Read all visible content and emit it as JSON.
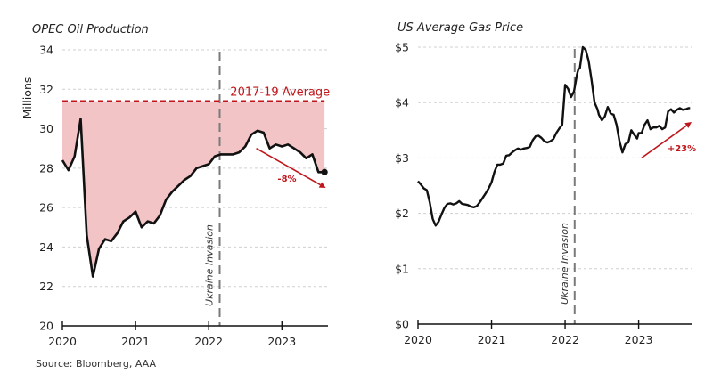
{
  "source": "Source: Bloomberg, AAA",
  "colors": {
    "line": "#111111",
    "accent_red": "#c0151b",
    "fill_pink": "#f2c4c6",
    "grid": "#cfcfcf",
    "event_line": "#7a7a7a"
  },
  "chart_data": [
    {
      "type": "area",
      "title": "OPEC Oil Production",
      "xlabel": "",
      "ylabel": "Millions",
      "xlim": [
        2020.0,
        2023.63
      ],
      "ylim": [
        20,
        34
      ],
      "x_ticks": [
        2020,
        2021,
        2022,
        2023
      ],
      "x_tick_labels": [
        "2020",
        "2021",
        "2022",
        "2023"
      ],
      "y_ticks": [
        20,
        22,
        24,
        26,
        28,
        30,
        32,
        34
      ],
      "y_tick_labels": [
        "20",
        "22",
        "24",
        "26",
        "28",
        "30",
        "32",
        "34"
      ],
      "grid": "horizontal-dotted",
      "series": [
        {
          "name": "OPEC Oil Production",
          "x": [
            2020.0,
            2020.083,
            2020.167,
            2020.25,
            2020.333,
            2020.417,
            2020.5,
            2020.583,
            2020.667,
            2020.75,
            2020.833,
            2020.917,
            2021.0,
            2021.083,
            2021.167,
            2021.25,
            2021.333,
            2021.417,
            2021.5,
            2021.583,
            2021.667,
            2021.75,
            2021.833,
            2021.917,
            2022.0,
            2022.083,
            2022.167,
            2022.25,
            2022.333,
            2022.417,
            2022.5,
            2022.583,
            2022.667,
            2022.75,
            2022.833,
            2022.917,
            2023.0,
            2023.083,
            2023.167,
            2023.25,
            2023.333,
            2023.417,
            2023.5,
            2023.583
          ],
          "values": [
            28.4,
            27.9,
            28.6,
            30.5,
            24.6,
            22.5,
            23.9,
            24.4,
            24.3,
            24.7,
            25.3,
            25.5,
            25.8,
            25.0,
            25.3,
            25.2,
            25.6,
            26.4,
            26.8,
            27.1,
            27.4,
            27.6,
            28.0,
            28.1,
            28.2,
            28.6,
            28.7,
            28.7,
            28.7,
            28.8,
            29.1,
            29.7,
            29.9,
            29.8,
            29.0,
            29.2,
            29.1,
            29.2,
            29.0,
            28.8,
            28.5,
            28.7,
            27.8,
            27.8
          ]
        }
      ],
      "reference_line": {
        "label": "2017-19 Average",
        "value": 31.4,
        "style": "dashed",
        "fill_between": true
      },
      "event_line": {
        "label": "Ukraine Invasion",
        "x": 2022.15,
        "style": "dashed"
      },
      "trend_annotation": {
        "label": "-8%",
        "direction": "down",
        "from": [
          2022.65,
          29.0
        ],
        "to": [
          2023.6,
          27.0
        ]
      },
      "end_marker": {
        "x": 2023.583,
        "value": 27.8
      }
    },
    {
      "type": "line",
      "title": "US Average Gas Price",
      "xlabel": "",
      "ylabel": "",
      "xlim": [
        2020.0,
        2023.72
      ],
      "ylim": [
        0,
        5
      ],
      "x_ticks": [
        2020,
        2021,
        2022,
        2023
      ],
      "x_tick_labels": [
        "2020",
        "2021",
        "2022",
        "2023"
      ],
      "y_ticks": [
        0,
        1,
        2,
        3,
        4,
        5
      ],
      "y_tick_labels": [
        "$0",
        "$1",
        "$2",
        "$3",
        "$4",
        "$5"
      ],
      "grid": "horizontal-dotted",
      "series": [
        {
          "name": "US Average Gas Price",
          "x": [
            2020.0,
            2020.04,
            2020.08,
            2020.12,
            2020.16,
            2020.2,
            2020.24,
            2020.28,
            2020.32,
            2020.36,
            2020.4,
            2020.44,
            2020.48,
            2020.52,
            2020.56,
            2020.6,
            2020.64,
            2020.68,
            2020.72,
            2020.76,
            2020.8,
            2020.84,
            2020.88,
            2020.92,
            2020.96,
            2021.0,
            2021.04,
            2021.08,
            2021.12,
            2021.16,
            2021.2,
            2021.24,
            2021.28,
            2021.32,
            2021.36,
            2021.4,
            2021.44,
            2021.48,
            2021.52,
            2021.56,
            2021.6,
            2021.64,
            2021.68,
            2021.72,
            2021.76,
            2021.8,
            2021.84,
            2021.88,
            2021.92,
            2021.96,
            2022.0,
            2022.04,
            2022.08,
            2022.12,
            2022.16,
            2022.18,
            2022.2,
            2022.24,
            2022.28,
            2022.32,
            2022.36,
            2022.4,
            2022.44,
            2022.46,
            2022.5,
            2022.54,
            2022.58,
            2022.62,
            2022.66,
            2022.7,
            2022.74,
            2022.78,
            2022.82,
            2022.86,
            2022.9,
            2022.94,
            2022.98,
            2023.0,
            2023.04,
            2023.08,
            2023.12,
            2023.16,
            2023.2,
            2023.24,
            2023.28,
            2023.32,
            2023.36,
            2023.4,
            2023.44,
            2023.48,
            2023.52,
            2023.56,
            2023.6,
            2023.64,
            2023.68,
            2023.7
          ],
          "values": [
            2.58,
            2.52,
            2.45,
            2.42,
            2.2,
            1.9,
            1.78,
            1.85,
            1.98,
            2.1,
            2.17,
            2.18,
            2.16,
            2.18,
            2.22,
            2.17,
            2.16,
            2.15,
            2.12,
            2.11,
            2.13,
            2.2,
            2.28,
            2.36,
            2.45,
            2.56,
            2.75,
            2.88,
            2.88,
            2.9,
            3.04,
            3.05,
            3.1,
            3.14,
            3.17,
            3.15,
            3.17,
            3.18,
            3.2,
            3.32,
            3.39,
            3.4,
            3.36,
            3.3,
            3.28,
            3.3,
            3.34,
            3.45,
            3.53,
            3.6,
            4.32,
            4.25,
            4.1,
            4.2,
            4.5,
            4.6,
            4.62,
            5.0,
            4.95,
            4.75,
            4.4,
            4.0,
            3.88,
            3.78,
            3.68,
            3.75,
            3.92,
            3.8,
            3.78,
            3.6,
            3.3,
            3.1,
            3.25,
            3.28,
            3.5,
            3.42,
            3.35,
            3.45,
            3.45,
            3.6,
            3.68,
            3.52,
            3.55,
            3.55,
            3.58,
            3.52,
            3.55,
            3.84,
            3.88,
            3.82,
            3.87,
            3.9,
            3.87,
            3.88,
            3.9,
            3.9
          ]
        }
      ],
      "event_line": {
        "label": "Ukraine Invasion",
        "x": 2022.13,
        "style": "dashed"
      },
      "trend_annotation": {
        "label": "+23%",
        "direction": "up",
        "from": [
          2023.04,
          3.0
        ],
        "to": [
          2023.72,
          3.65
        ]
      },
      "end_marker": {
        "x": 2023.7,
        "value": 3.9
      }
    }
  ]
}
